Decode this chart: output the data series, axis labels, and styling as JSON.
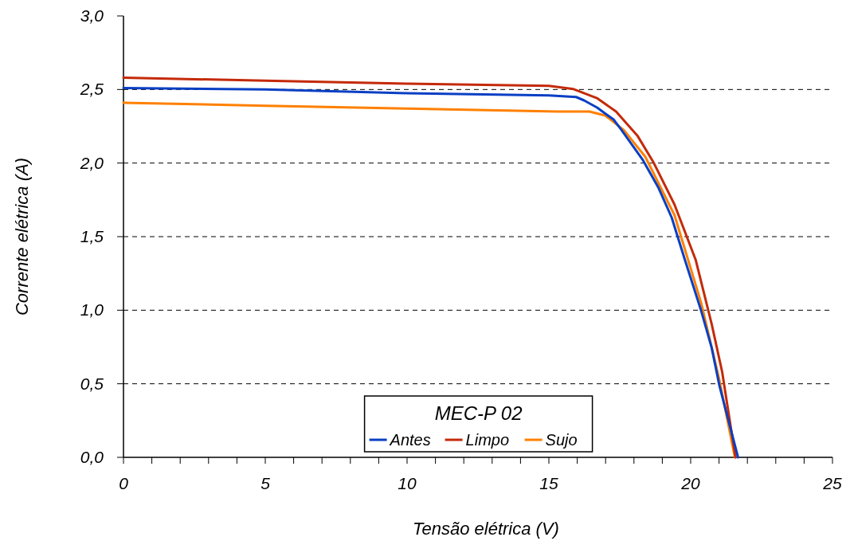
{
  "chart_data": {
    "type": "line",
    "xlabel": "Tensão elétrica (V)",
    "ylabel": "Corrente elétrica (A)",
    "legend_title": "MEC-P 02",
    "legend": "bottom",
    "grid": "y",
    "line_style": "solid",
    "marker": "none",
    "xlim": [
      0,
      25
    ],
    "ylim": [
      0,
      3
    ],
    "xticks": [
      0,
      {
        "value": 1,
        "label": null
      },
      {
        "value": 2,
        "label": null
      },
      {
        "value": 3,
        "label": null
      },
      {
        "value": 4,
        "label": null
      },
      5,
      {
        "value": 6,
        "label": null
      },
      {
        "value": 7,
        "label": null
      },
      {
        "value": 8,
        "label": null
      },
      {
        "value": 9,
        "label": null
      },
      10,
      {
        "value": 11,
        "label": null
      },
      {
        "value": 12,
        "label": null
      },
      {
        "value": 13,
        "label": null
      },
      {
        "value": 14,
        "label": null
      },
      15,
      {
        "value": 16,
        "label": null
      },
      {
        "value": 17,
        "label": null
      },
      {
        "value": 18,
        "label": null
      },
      {
        "value": 19,
        "label": null
      },
      20,
      {
        "value": 21,
        "label": null
      },
      {
        "value": 22,
        "label": null
      },
      {
        "value": 23,
        "label": null
      },
      {
        "value": 24,
        "label": null
      },
      25
    ],
    "yticks": [
      {
        "value": 0,
        "label": "0,0"
      },
      {
        "value": 0.5,
        "label": "0,5"
      },
      {
        "value": 1,
        "label": "1,0"
      },
      {
        "value": 1.5,
        "label": "1,5"
      },
      {
        "value": 2,
        "label": "2,0"
      },
      {
        "value": 2.5,
        "label": "2,5"
      },
      {
        "value": 3,
        "label": "3,0"
      }
    ],
    "series": [
      {
        "name": "Antes",
        "color": "#0a3fc4",
        "x": [
          0,
          5,
          10,
          15,
          15.96,
          16.24,
          16.7,
          17.28,
          17.56,
          18.3,
          18.87,
          19.33,
          19.8,
          20.37,
          20.74,
          21.01,
          21.67
        ],
        "values": [
          2.51,
          2.5,
          2.475,
          2.46,
          2.449,
          2.426,
          2.377,
          2.296,
          2.225,
          2.025,
          1.83,
          1.63,
          1.34,
          0.996,
          0.745,
          0.49,
          0
        ]
      },
      {
        "name": "Limpo",
        "color": "#c42a0a",
        "x": [
          0,
          5,
          10,
          15,
          15.87,
          16.71,
          17.37,
          18.12,
          18.68,
          19.43,
          20.18,
          20.74,
          21.11,
          21.58
        ],
        "values": [
          2.58,
          2.56,
          2.54,
          2.525,
          2.503,
          2.44,
          2.35,
          2.187,
          2.008,
          1.718,
          1.34,
          0.906,
          0.581,
          0
        ]
      },
      {
        "name": "Sujo",
        "color": "#ff8000",
        "x": [
          0,
          5,
          10,
          15.31,
          16.43,
          16.99,
          17.64,
          18.4,
          19.43,
          20.37,
          21.01,
          21.56
        ],
        "values": [
          2.41,
          2.39,
          2.37,
          2.35,
          2.35,
          2.323,
          2.225,
          2.043,
          1.646,
          1.05,
          0.527,
          0
        ]
      }
    ]
  }
}
